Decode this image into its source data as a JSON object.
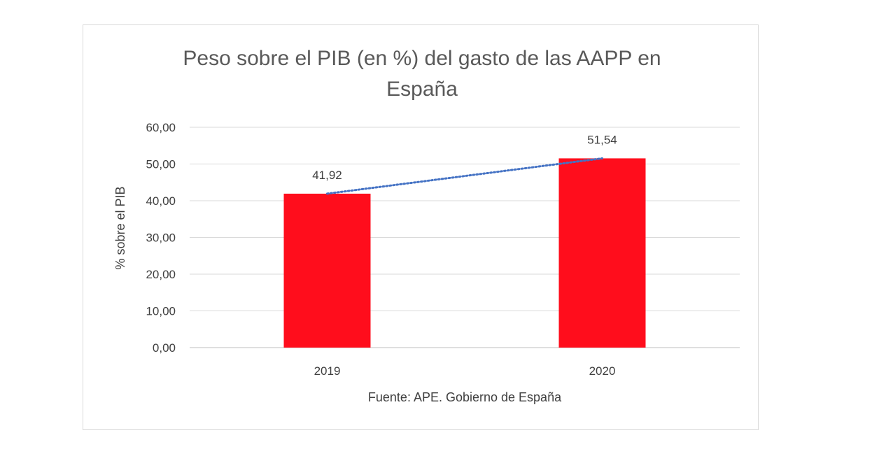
{
  "chart_data": {
    "type": "bar",
    "title_lines": [
      "Peso sobre el PIB (en %) del gasto de las AAPP en",
      "España"
    ],
    "categories": [
      "2019",
      "2020"
    ],
    "values": [
      41.92,
      51.54
    ],
    "data_labels": [
      "41,92",
      "51,54"
    ],
    "ylabel": "% sobre el PIB",
    "xlabel": "",
    "ylim": [
      0,
      60
    ],
    "yticks": [
      0,
      10,
      20,
      30,
      40,
      50,
      60
    ],
    "ytick_labels": [
      "0,00",
      "10,00",
      "20,00",
      "30,00",
      "40,00",
      "50,00",
      "60,00"
    ],
    "grid": true,
    "trendline": {
      "style": "dotted",
      "color": "#4472c4"
    },
    "bar_color": "#ff0d1c",
    "source": "Fuente: APE. Gobierno de España"
  }
}
